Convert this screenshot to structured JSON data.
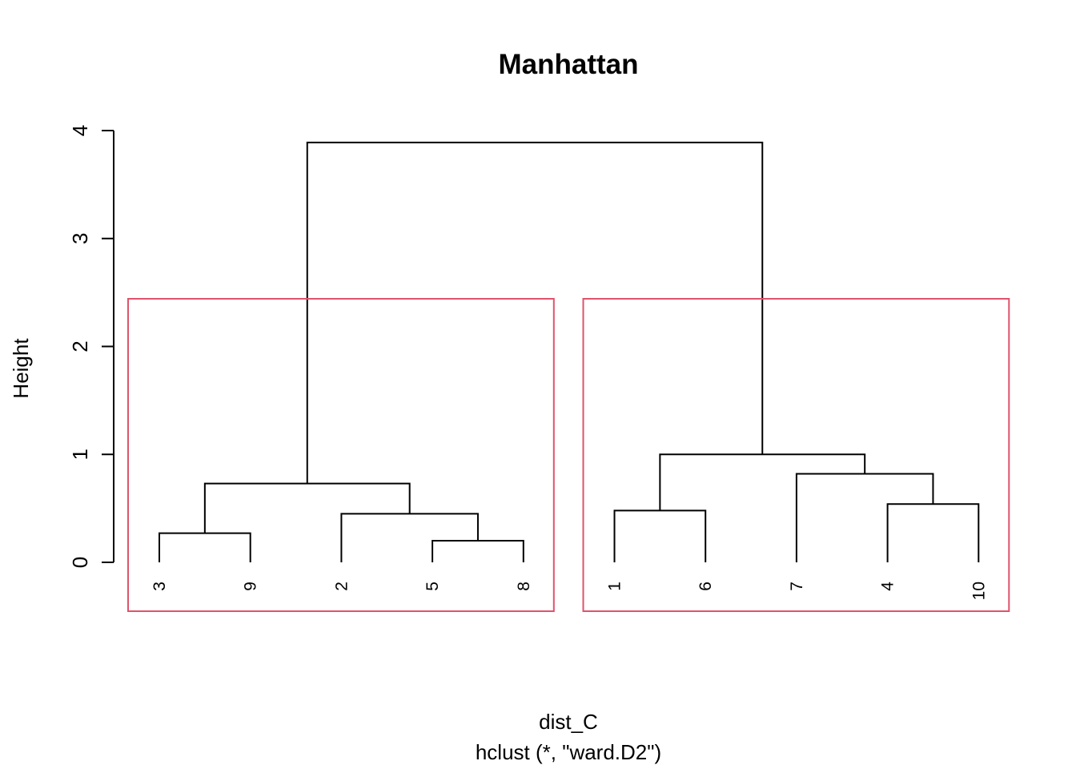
{
  "chart_data": {
    "type": "dendrogram",
    "title": "Manhattan",
    "ylabel": "Height",
    "xlabel": "dist_C",
    "sublabel": "hclust (*, \"ward.D2\")",
    "ylim": [
      0,
      4
    ],
    "yticks": [
      0,
      1,
      2,
      3,
      4
    ],
    "leaf_order": [
      "3",
      "9",
      "2",
      "5",
      "8",
      "1",
      "6",
      "7",
      "4",
      "10"
    ],
    "merges": [
      {
        "left": "3",
        "right": "9",
        "height": 0.27
      },
      {
        "left": "5",
        "right": "8",
        "height": 0.2
      },
      {
        "left": "2",
        "right": "5,8",
        "height": 0.45
      },
      {
        "left": "3,9",
        "right": "2,5,8",
        "height": 0.73
      },
      {
        "left": "1",
        "right": "6",
        "height": 0.48
      },
      {
        "left": "4",
        "right": "10",
        "height": 0.54
      },
      {
        "left": "7",
        "right": "4,10",
        "height": 0.82
      },
      {
        "left": "1,6",
        "right": "7,4,10",
        "height": 1.0
      },
      {
        "left": "3,9,2,5,8",
        "right": "1,6,7,4,10",
        "height": 3.89
      }
    ],
    "clusters_highlighted": [
      {
        "leaves": [
          "3",
          "9",
          "2",
          "5",
          "8"
        ]
      },
      {
        "leaves": [
          "1",
          "6",
          "7",
          "4",
          "10"
        ]
      }
    ],
    "highlight_color": "#df536b",
    "line_color": "#000000"
  }
}
